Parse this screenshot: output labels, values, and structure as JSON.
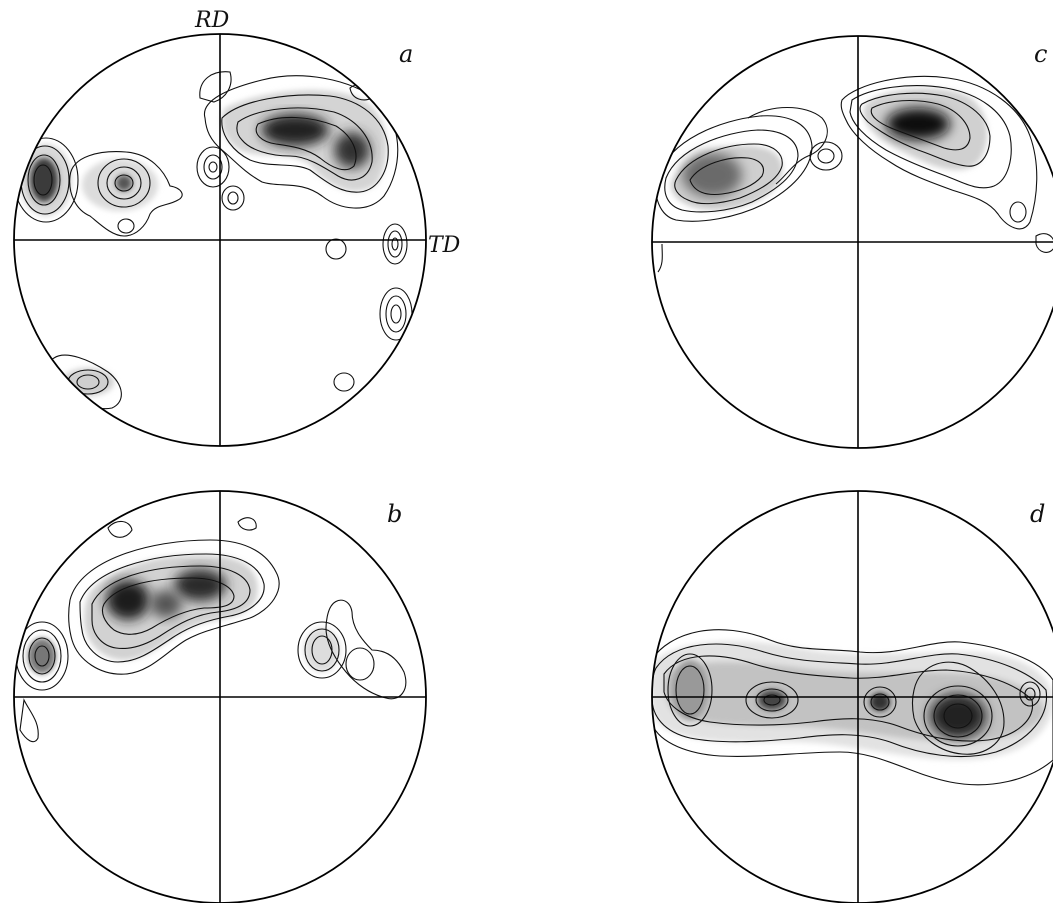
{
  "figure": {
    "axis_labels": {
      "rd": "RD",
      "td": "TD"
    },
    "panels": [
      {
        "id": "a",
        "label": "a"
      },
      {
        "id": "b",
        "label": "b"
      },
      {
        "id": "c",
        "label": "c"
      },
      {
        "id": "d",
        "label": "d"
      }
    ]
  }
}
